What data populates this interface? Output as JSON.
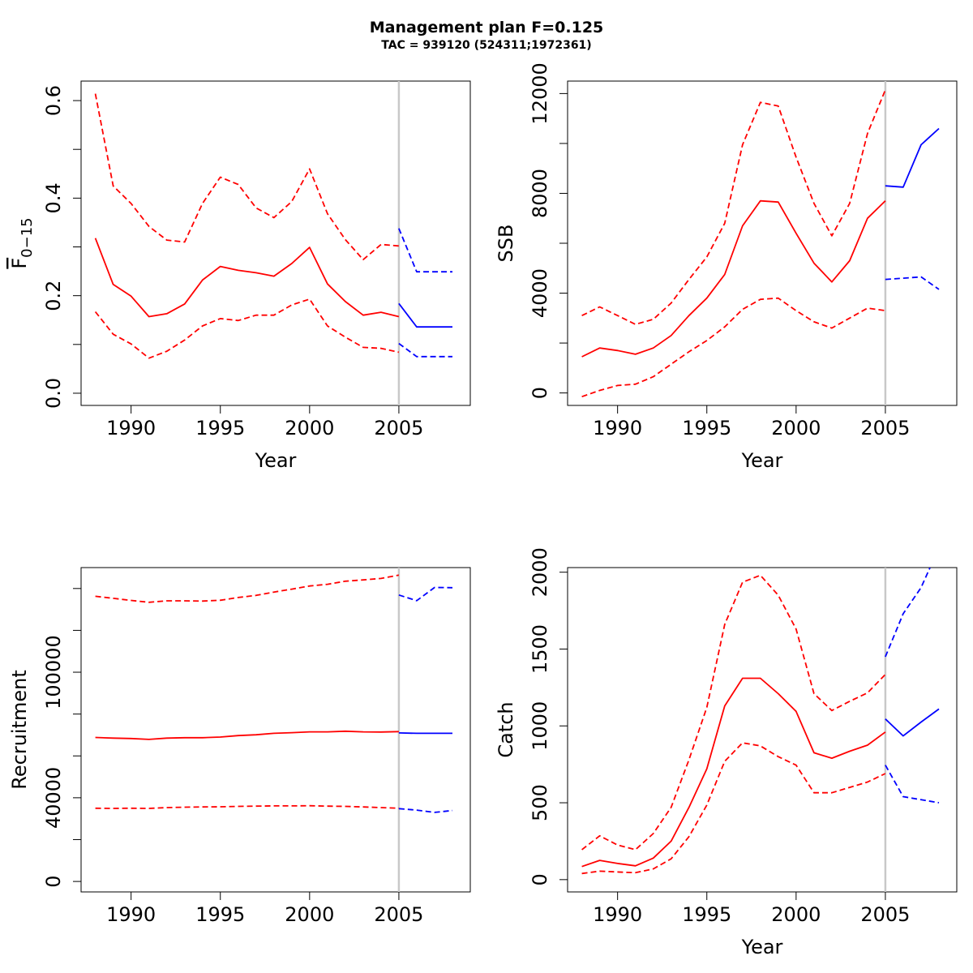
{
  "title": "Management plan F=0.125",
  "subtitle": "TAC = 939120 (524311;1972361)",
  "colors": {
    "historic": "#ff0000",
    "projection": "#0000ff",
    "divider": "#c8c8c8"
  },
  "chart_data": [
    {
      "type": "line",
      "id": "f",
      "xlabel": "Year",
      "ylabel_main": "F",
      "ylabel_sub": "0−15",
      "xlim": [
        1987.2,
        2009.0
      ],
      "ylim": [
        -0.025,
        0.64
      ],
      "xticks": [
        1990,
        1995,
        2000,
        2005
      ],
      "yticks": [
        0.0,
        0.2,
        0.4,
        0.6
      ],
      "ytick_labels": [
        "0.0",
        "0.2",
        "0.4",
        "0.6"
      ],
      "yminor": [
        0.1,
        0.3,
        0.5
      ],
      "divider_x": 2005,
      "series": [
        {
          "name": "historic",
          "style": "solid",
          "color": "#ff0000",
          "x": [
            1988,
            1989,
            1990,
            1991,
            1992,
            1993,
            1994,
            1995,
            1996,
            1997,
            1998,
            1999,
            2000,
            2001,
            2002,
            2003,
            2004,
            2005
          ],
          "y": [
            0.318,
            0.223,
            0.199,
            0.157,
            0.163,
            0.183,
            0.232,
            0.26,
            0.252,
            0.247,
            0.24,
            0.266,
            0.299,
            0.224,
            0.188,
            0.16,
            0.166,
            0.157
          ]
        },
        {
          "name": "historic-upper",
          "style": "dashed",
          "color": "#ff0000",
          "x": [
            1988,
            1989,
            1990,
            1991,
            1992,
            1993,
            1994,
            1995,
            1996,
            1997,
            1998,
            1999,
            2000,
            2001,
            2002,
            2003,
            2004,
            2005
          ],
          "y": [
            0.614,
            0.425,
            0.389,
            0.342,
            0.314,
            0.31,
            0.389,
            0.443,
            0.428,
            0.38,
            0.36,
            0.393,
            0.46,
            0.368,
            0.315,
            0.274,
            0.305,
            0.302
          ]
        },
        {
          "name": "historic-lower",
          "style": "dashed",
          "color": "#ff0000",
          "x": [
            1988,
            1989,
            1990,
            1991,
            1992,
            1993,
            1994,
            1995,
            1996,
            1997,
            1998,
            1999,
            2000,
            2001,
            2002,
            2003,
            2004,
            2005
          ],
          "y": [
            0.167,
            0.121,
            0.101,
            0.072,
            0.086,
            0.109,
            0.138,
            0.153,
            0.149,
            0.16,
            0.16,
            0.181,
            0.193,
            0.138,
            0.115,
            0.094,
            0.092,
            0.084
          ]
        },
        {
          "name": "projection",
          "style": "solid",
          "color": "#0000ff",
          "x": [
            2005,
            2006,
            2007,
            2008
          ],
          "y": [
            0.184,
            0.136,
            0.136,
            0.136
          ]
        },
        {
          "name": "projection-upper",
          "style": "dashed",
          "color": "#0000ff",
          "x": [
            2005,
            2006,
            2007,
            2008
          ],
          "y": [
            0.338,
            0.249,
            0.249,
            0.249
          ]
        },
        {
          "name": "projection-lower",
          "style": "dashed",
          "color": "#0000ff",
          "x": [
            2005,
            2006,
            2007,
            2008
          ],
          "y": [
            0.102,
            0.075,
            0.075,
            0.075
          ]
        }
      ]
    },
    {
      "type": "line",
      "id": "ssb",
      "xlabel": "Year",
      "ylabel_main": "SSB",
      "ylabel_sub": "",
      "xlim": [
        1987.2,
        2009.0
      ],
      "ylim": [
        -500,
        12500
      ],
      "xticks": [
        1990,
        1995,
        2000,
        2005
      ],
      "yticks": [
        0,
        4000,
        8000,
        12000
      ],
      "ytick_labels": [
        "0",
        "4000",
        "8000",
        "12000"
      ],
      "yminor": [
        2000,
        6000,
        10000
      ],
      "divider_x": 2005,
      "series": [
        {
          "name": "historic",
          "style": "solid",
          "color": "#ff0000",
          "x": [
            1988,
            1989,
            1990,
            1991,
            1992,
            1993,
            1994,
            1995,
            1996,
            1997,
            1998,
            1999,
            2000,
            2001,
            2002,
            2003,
            2004,
            2005
          ],
          "y": [
            1450,
            1800,
            1700,
            1550,
            1800,
            2300,
            3100,
            3800,
            4750,
            6700,
            7700,
            7650,
            6400,
            5200,
            4450,
            5300,
            7000,
            7700
          ]
        },
        {
          "name": "historic-upper",
          "style": "dashed",
          "color": "#ff0000",
          "x": [
            1988,
            1989,
            1990,
            1991,
            1992,
            1993,
            1994,
            1995,
            1996,
            1997,
            1998,
            1999,
            2000,
            2001,
            2002,
            2003,
            2004,
            2005
          ],
          "y": [
            3100,
            3450,
            3100,
            2750,
            2950,
            3600,
            4550,
            5450,
            6800,
            9950,
            11650,
            11500,
            9450,
            7600,
            6300,
            7600,
            10400,
            12150
          ]
        },
        {
          "name": "historic-lower",
          "style": "dashed",
          "color": "#ff0000",
          "x": [
            1988,
            1989,
            1990,
            1991,
            1992,
            1993,
            1994,
            1995,
            1996,
            1997,
            1998,
            1999,
            2000,
            2001,
            2002,
            2003,
            2004,
            2005
          ],
          "y": [
            -150,
            100,
            300,
            350,
            650,
            1150,
            1650,
            2100,
            2650,
            3350,
            3750,
            3800,
            3300,
            2850,
            2600,
            3000,
            3400,
            3300
          ]
        },
        {
          "name": "projection",
          "style": "solid",
          "color": "#0000ff",
          "x": [
            2005,
            2006,
            2007,
            2008
          ],
          "y": [
            8300,
            8250,
            9950,
            10600
          ]
        },
        {
          "name": "projection-lower",
          "style": "dashed",
          "color": "#0000ff",
          "x": [
            2005,
            2006,
            2007,
            2008
          ],
          "y": [
            4550,
            4600,
            4650,
            4150
          ]
        }
      ]
    },
    {
      "type": "line",
      "id": "recruitment",
      "xlabel": "",
      "ylabel_main": "Recruitment",
      "ylabel_sub": "",
      "xlim": [
        1987.2,
        2009.0
      ],
      "ylim": [
        -5000,
        150000
      ],
      "xticks": [
        1990,
        1995,
        2000,
        2005
      ],
      "yticks": [
        0,
        40000,
        100000
      ],
      "ytick_labels": [
        "0",
        "40000",
        "100000"
      ],
      "yminor": [
        20000,
        60000,
        80000,
        120000,
        140000
      ],
      "divider_x": 2005,
      "series": [
        {
          "name": "historic",
          "style": "solid",
          "color": "#ff0000",
          "x": [
            1988,
            1989,
            1990,
            1991,
            1992,
            1993,
            1994,
            1995,
            1996,
            1997,
            1998,
            1999,
            2000,
            2001,
            2002,
            2003,
            2004,
            2005
          ],
          "y": [
            68800,
            68500,
            68300,
            67900,
            68500,
            68700,
            68700,
            69000,
            69700,
            70100,
            70800,
            71100,
            71500,
            71500,
            71800,
            71500,
            71400,
            71600
          ]
        },
        {
          "name": "historic-upper",
          "style": "dashed",
          "color": "#ff0000",
          "x": [
            1988,
            1989,
            1990,
            1991,
            1992,
            1993,
            1994,
            1995,
            1996,
            1997,
            1998,
            1999,
            2000,
            2001,
            2002,
            2003,
            2004,
            2005
          ],
          "y": [
            136300,
            135300,
            134300,
            133400,
            134100,
            134100,
            134000,
            134400,
            135700,
            136700,
            138300,
            139700,
            141200,
            142000,
            143500,
            144100,
            144800,
            146400
          ]
        },
        {
          "name": "historic-lower",
          "style": "dashed",
          "color": "#ff0000",
          "x": [
            1988,
            1989,
            1990,
            1991,
            1992,
            1993,
            1994,
            1995,
            1996,
            1997,
            1998,
            1999,
            2000,
            2001,
            2002,
            2003,
            2004,
            2005
          ],
          "y": [
            35000,
            34900,
            35000,
            34900,
            35300,
            35500,
            35600,
            35700,
            35900,
            36000,
            36100,
            36100,
            36200,
            36000,
            35900,
            35600,
            35300,
            35000
          ]
        },
        {
          "name": "projection",
          "style": "solid",
          "color": "#0000ff",
          "x": [
            2005,
            2006,
            2007,
            2008
          ],
          "y": [
            71000,
            70800,
            70800,
            70800
          ]
        },
        {
          "name": "projection-upper",
          "style": "dashed",
          "color": "#0000ff",
          "x": [
            2005,
            2006,
            2007,
            2008
          ],
          "y": [
            136900,
            134200,
            140500,
            140400
          ]
        },
        {
          "name": "projection-lower",
          "style": "dashed",
          "color": "#0000ff",
          "x": [
            2005,
            2006,
            2007,
            2008
          ],
          "y": [
            34800,
            34100,
            33000,
            33900
          ]
        }
      ]
    },
    {
      "type": "line",
      "id": "catch",
      "xlabel": "Year",
      "ylabel_main": "Catch",
      "ylabel_sub": "",
      "xlim": [
        1987.2,
        2009.0
      ],
      "ylim": [
        -80,
        2030
      ],
      "xticks": [
        1990,
        1995,
        2000,
        2005
      ],
      "yticks": [
        0,
        500,
        1000,
        1500,
        2000
      ],
      "ytick_labels": [
        "0",
        "500",
        "1000",
        "1500",
        "2000"
      ],
      "yminor": [],
      "divider_x": 2005,
      "series": [
        {
          "name": "historic",
          "style": "solid",
          "color": "#ff0000",
          "x": [
            1988,
            1989,
            1990,
            1991,
            1992,
            1993,
            1994,
            1995,
            1996,
            1997,
            1998,
            1999,
            2000,
            2001,
            2002,
            2003,
            2004,
            2005
          ],
          "y": [
            85,
            125,
            105,
            90,
            140,
            250,
            470,
            720,
            1130,
            1310,
            1310,
            1210,
            1095,
            825,
            790,
            835,
            875,
            960
          ]
        },
        {
          "name": "historic-upper",
          "style": "dashed",
          "color": "#ff0000",
          "x": [
            1988,
            1989,
            1990,
            1991,
            1992,
            1993,
            1994,
            1995,
            1996,
            1997,
            1998,
            1999,
            2000,
            2001,
            2002,
            2003,
            2004,
            2005
          ],
          "y": [
            195,
            285,
            225,
            195,
            300,
            470,
            780,
            1120,
            1660,
            1935,
            1980,
            1850,
            1630,
            1210,
            1100,
            1160,
            1215,
            1335
          ]
        },
        {
          "name": "historic-lower",
          "style": "dashed",
          "color": "#ff0000",
          "x": [
            1988,
            1989,
            1990,
            1991,
            1992,
            1993,
            1994,
            1995,
            1996,
            1997,
            1998,
            1999,
            2000,
            2001,
            2002,
            2003,
            2004,
            2005
          ],
          "y": [
            40,
            55,
            50,
            45,
            70,
            135,
            280,
            485,
            770,
            890,
            870,
            800,
            745,
            565,
            565,
            600,
            635,
            690
          ]
        },
        {
          "name": "projection",
          "style": "solid",
          "color": "#0000ff",
          "x": [
            2005,
            2006,
            2007,
            2008
          ],
          "y": [
            1045,
            935,
            1025,
            1110
          ]
        },
        {
          "name": "projection-upper",
          "style": "dashed",
          "color": "#0000ff",
          "x": [
            2005,
            2006,
            2007,
            2007.5
          ],
          "y": [
            1450,
            1730,
            1900,
            2030
          ]
        },
        {
          "name": "projection-lower",
          "style": "dashed",
          "color": "#0000ff",
          "x": [
            2005,
            2006,
            2007,
            2008
          ],
          "y": [
            745,
            540,
            520,
            500
          ]
        }
      ]
    }
  ]
}
